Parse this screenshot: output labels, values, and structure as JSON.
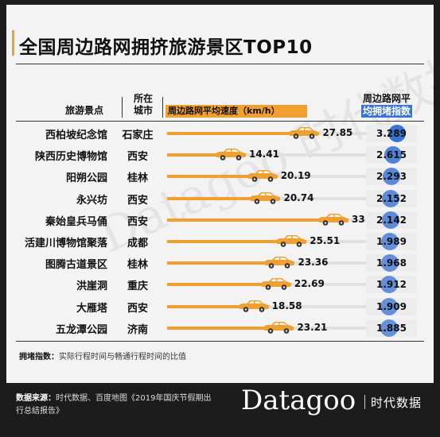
{
  "chart_data": {
    "type": "bar",
    "title": "全国周边路网拥挤旅游景区TOP10",
    "columns": {
      "spot": "旅游景点",
      "city_line1": "所在",
      "city_line2": "城市",
      "speed": "周边路网平均速度（km/h）",
      "index_line1": "周边路网平",
      "index_line2": "均拥堵指数"
    },
    "categories": [
      "西柏坡纪念馆",
      "陕西历史博物馆",
      "阳朔公园",
      "永兴坊",
      "秦始皇兵马俑",
      "活建川博物馆聚落",
      "图腾古道景区",
      "洪崖洞",
      "大雁塔",
      "五龙潭公园"
    ],
    "cities": [
      "石家庄",
      "西安",
      "桂林",
      "西安",
      "西安",
      "成都",
      "桂林",
      "重庆",
      "西安",
      "济南"
    ],
    "series": [
      {
        "name": "周边路网平均速度（km/h）",
        "values": [
          27.85,
          14.41,
          20.19,
          20.74,
          33.19,
          25.51,
          23.36,
          22.69,
          18.58,
          23.21
        ]
      },
      {
        "name": "周边路网平均拥堵指数",
        "values": [
          3.289,
          2.615,
          2.293,
          2.152,
          2.142,
          1.989,
          1.968,
          1.912,
          1.909,
          1.885
        ]
      }
    ],
    "value_labels": {
      "speed": [
        "27.85",
        "14.41",
        "20.19",
        "20.74",
        "33.19",
        "25.51",
        "23.36",
        "22.69",
        "18.58",
        "23.21"
      ],
      "index": [
        "3.289",
        "2.615",
        "2.293",
        "2.152",
        "2.142",
        "1.989",
        "1.968",
        "1.912",
        "1.909",
        "1.885"
      ]
    },
    "speed_max": 33.19,
    "index_min": 1.885,
    "index_max": 3.289
  },
  "footnote": {
    "label": "拥堵指数：",
    "text": "实际行程时间与畅通行程时间的比值"
  },
  "source": {
    "label": "数据来源：",
    "text": "时代数据、百度地图《2019年国庆节假期出行总结报告》"
  },
  "brand": {
    "logo": "Datagoo",
    "cn": "时代数据",
    "watermark": "Datagoo 时代数据"
  },
  "colors": {
    "accent": "#f0a030",
    "index_blue": "#3a73d4",
    "background": "#1c1c1c",
    "card": "#f3f3f3"
  }
}
